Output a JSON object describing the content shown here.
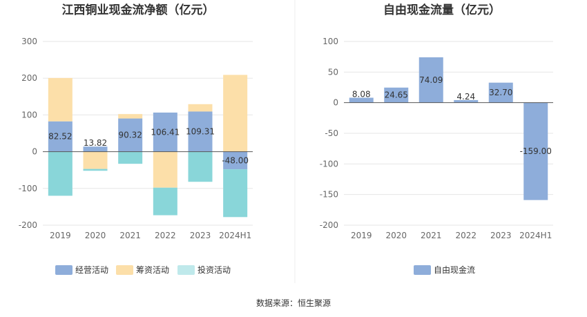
{
  "source": "数据来源：恒生聚源",
  "chart_data": [
    {
      "type": "bar",
      "stacked": true,
      "title": "江西铜业现金流净额（亿元）",
      "categories": [
        "2019",
        "2020",
        "2021",
        "2022",
        "2023",
        "2024H1"
      ],
      "ylim": [
        -200,
        300
      ],
      "yticks": [
        300,
        200,
        100,
        0,
        -100,
        -200
      ],
      "grid": true,
      "legend_position": "bottom",
      "series": [
        {
          "name": "经营活动",
          "color": "#8eadda",
          "values": [
            82.52,
            13.82,
            90.32,
            106.41,
            109.31,
            -48.0
          ],
          "labels": [
            "82.52",
            "13.82",
            "90.32",
            "106.41",
            "109.31",
            "-48.00"
          ]
        },
        {
          "name": "筹资活动",
          "color": "#fcdfa9",
          "values": [
            118,
            -47,
            12,
            -98,
            20,
            209
          ]
        },
        {
          "name": "投资活动",
          "color": "#89d6d9",
          "legend_color": "#bfe9eb",
          "values": [
            -120,
            -5,
            -33,
            -75,
            -82,
            -130
          ]
        }
      ]
    },
    {
      "type": "bar",
      "title": "自由现金流量（亿元）",
      "categories": [
        "2019",
        "2020",
        "2021",
        "2022",
        "2023",
        "2024H1"
      ],
      "ylim": [
        -200,
        100
      ],
      "yticks": [
        100,
        50,
        0,
        -50,
        -100,
        -150,
        -200
      ],
      "grid": true,
      "legend_position": "bottom",
      "series": [
        {
          "name": "自由现金流",
          "color": "#8eadda",
          "values": [
            8.08,
            24.65,
            74.09,
            4.24,
            32.7,
            -159.0
          ],
          "labels": [
            "8.08",
            "24.65",
            "74.09",
            "4.24",
            "32.70",
            "-159.00"
          ]
        }
      ]
    }
  ]
}
